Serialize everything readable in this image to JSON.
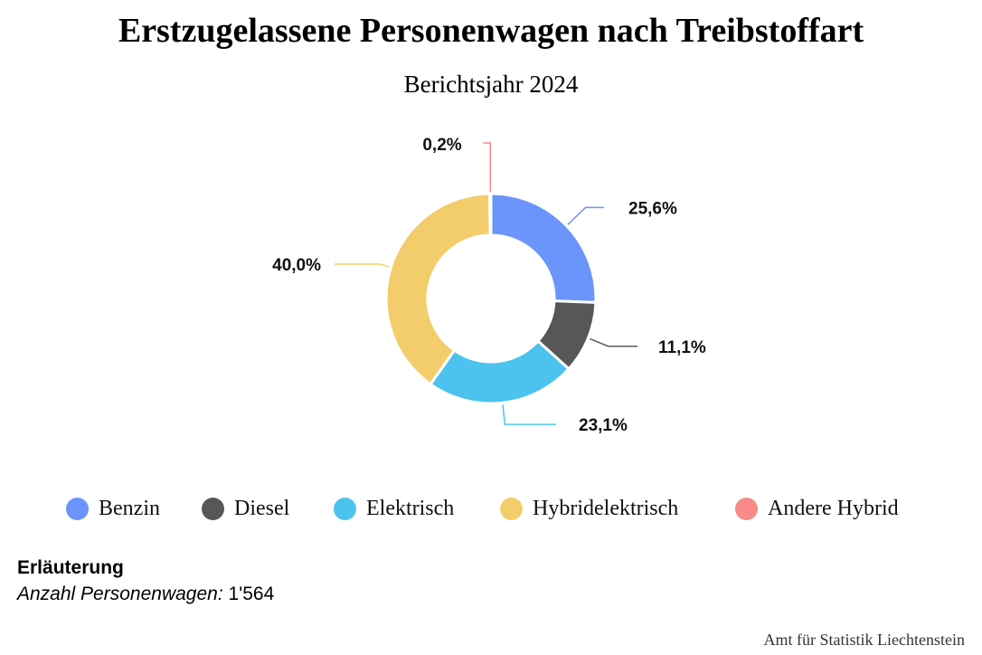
{
  "chart_data": {
    "type": "pie",
    "variant": "donut",
    "title": "Erstzugelassene Personenwagen nach Treibstoffart",
    "subtitle": "Berichtsjahr 2024",
    "series": [
      {
        "name": "Benzin",
        "value": 25.6,
        "label": "25,6%",
        "color": "#6b95fb"
      },
      {
        "name": "Diesel",
        "value": 11.1,
        "label": "11,1%",
        "color": "#575757"
      },
      {
        "name": "Elektrisch",
        "value": 23.1,
        "label": "23,1%",
        "color": "#4cc3ee"
      },
      {
        "name": "Hybridelektrisch",
        "value": 40.0,
        "label": "40,0%",
        "color": "#f3cd6b"
      },
      {
        "name": "Andere Hybrid",
        "value": 0.2,
        "label": "0,2%",
        "color": "#f88a8a"
      }
    ],
    "legend_position": "bottom"
  },
  "note": {
    "heading": "Erläuterung",
    "label": "Anzahl Personenwagen:",
    "value": "1'564"
  },
  "source": "Amt für Statistik Liechtenstein"
}
